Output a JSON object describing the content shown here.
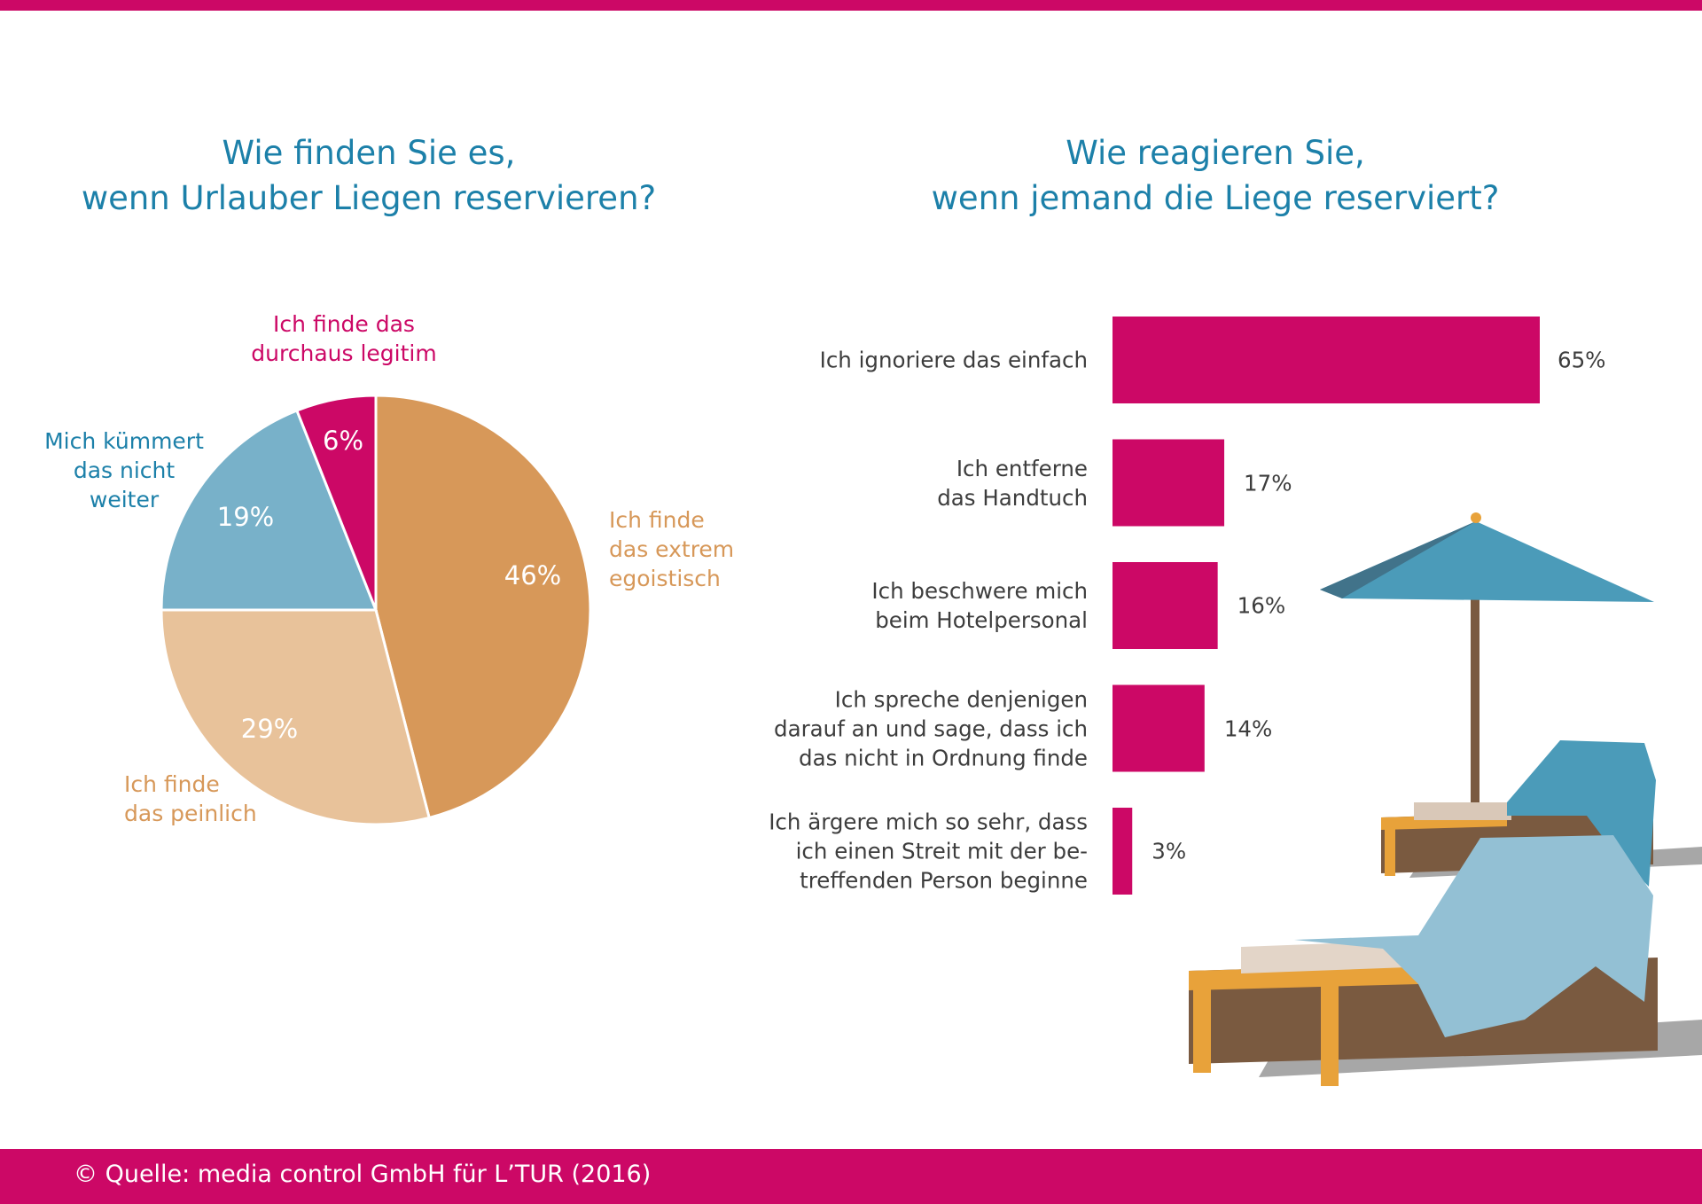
{
  "colors": {
    "accent": "#cc0866",
    "title": "#1c80a9",
    "orange": "#d79859",
    "light_orange": "#e8c29a",
    "blue": "#78b1c9",
    "bar": "#cc0866"
  },
  "footer": {
    "source": "© Quelle: media control GmbH für L’TUR (2016)"
  },
  "chart_data": [
    {
      "type": "pie",
      "title_lines": [
        "Wie finden Sie es,",
        "wenn Urlauber Liegen reservieren?"
      ],
      "slices": [
        {
          "label_lines": [
            "Ich finde",
            "das extrem",
            "egoistisch"
          ],
          "value": 46,
          "value_label": "46%",
          "color": "#d79859",
          "label_color": "#d79859"
        },
        {
          "label_lines": [
            "Ich finde",
            "das peinlich"
          ],
          "value": 29,
          "value_label": "29%",
          "color": "#e8c29a",
          "label_color": "#d79859"
        },
        {
          "label_lines": [
            "Mich kümmert",
            "das nicht",
            "weiter"
          ],
          "value": 19,
          "value_label": "19%",
          "color": "#78b1c9",
          "label_color": "#1c80a9"
        },
        {
          "label_lines": [
            "Ich finde das",
            "durchaus legitim"
          ],
          "value": 6,
          "value_label": "6%",
          "color": "#cc0866",
          "label_color": "#cc0866"
        }
      ]
    },
    {
      "type": "bar",
      "orientation": "horizontal",
      "title_lines": [
        "Wie reagieren Sie,",
        "wenn jemand die Liege reserviert?"
      ],
      "categories": [
        [
          "Ich ignoriere das einfach"
        ],
        [
          "Ich entferne",
          "das Handtuch"
        ],
        [
          "Ich beschwere mich",
          "beim Hotelpersonal"
        ],
        [
          "Ich spreche denjenigen",
          "darauf an und sage, dass ich",
          "das nicht in Ordnung finde"
        ],
        [
          "Ich ärgere mich so sehr, dass",
          "ich einen Streit mit der be-",
          "treffenden Person beginne"
        ]
      ],
      "values": [
        65,
        17,
        16,
        14,
        3
      ],
      "value_labels": [
        "65%",
        "17%",
        "16%",
        "14%",
        "3%"
      ],
      "xlim": [
        0,
        65
      ]
    }
  ]
}
